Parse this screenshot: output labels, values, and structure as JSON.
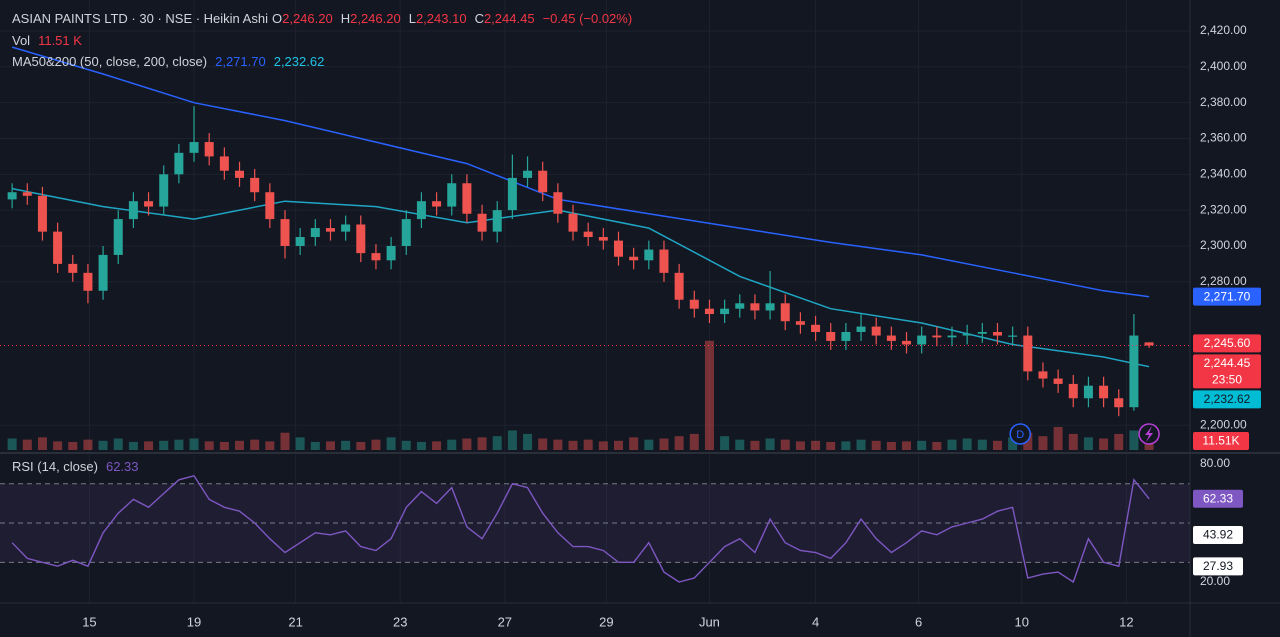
{
  "chart_data": [
    {
      "type": "candlestick",
      "title": "ASIAN PAINTS LTD · 30 · NSE · Heikin Ashi",
      "quote": [
        {
          "name": "O",
          "value": 2246.2,
          "label": "2,246.20"
        },
        {
          "name": "H",
          "value": 2246.2,
          "label": "2,246.20"
        },
        {
          "name": "L",
          "value": 2243.1,
          "label": "2,243.10"
        },
        {
          "name": "C",
          "value": 2244.45,
          "label": "2,244.45"
        }
      ],
      "change": "−0.45 (−0.02%)",
      "volume_title": "Vol",
      "volume_text": "11.51 K",
      "volume_box": "11.51K",
      "ma_title": "MA50&200 (50, close, 200, close)",
      "up_color": "#26a69a",
      "down_color": "#ef5350",
      "open": [
        2326,
        2330,
        2328,
        2308,
        2290,
        2285,
        2275,
        2295,
        2315,
        2325,
        2322,
        2340,
        2352,
        2358,
        2350,
        2342,
        2338,
        2330,
        2315,
        2300,
        2305,
        2310,
        2308,
        2312,
        2296,
        2292,
        2300,
        2315,
        2325,
        2322,
        2335,
        2318,
        2308,
        2320,
        2338,
        2342,
        2330,
        2318,
        2308,
        2305,
        2303,
        2294,
        2292,
        2298,
        2285,
        2270,
        2265,
        2262,
        2265,
        2268,
        2264,
        2268,
        2258,
        2256,
        2252,
        2247,
        2252,
        2255,
        2250,
        2247,
        2245,
        2250,
        2249,
        2250,
        2251,
        2252,
        2250,
        2250,
        2230,
        2226,
        2223,
        2215,
        2222,
        2215,
        2210,
        2246.2
      ],
      "high": [
        2335,
        2335,
        2333,
        2313,
        2295,
        2290,
        2300,
        2320,
        2330,
        2330,
        2345,
        2357,
        2378,
        2363,
        2355,
        2347,
        2343,
        2335,
        2320,
        2310,
        2315,
        2315,
        2317,
        2317,
        2301,
        2305,
        2320,
        2330,
        2330,
        2340,
        2340,
        2323,
        2325,
        2351,
        2350,
        2347,
        2335,
        2323,
        2313,
        2310,
        2308,
        2299,
        2303,
        2303,
        2290,
        2275,
        2270,
        2270,
        2273,
        2273,
        2286,
        2273,
        2263,
        2261,
        2257,
        2257,
        2262,
        2260,
        2255,
        2252,
        2255,
        2255,
        2255,
        2256,
        2257,
        2257,
        2255,
        2255,
        2235,
        2231,
        2228,
        2227,
        2227,
        2220,
        2262,
        2246.2
      ],
      "low": [
        2321,
        2323,
        2303,
        2285,
        2280,
        2268,
        2270,
        2290,
        2310,
        2317,
        2317,
        2335,
        2347,
        2345,
        2337,
        2333,
        2325,
        2310,
        2293,
        2295,
        2300,
        2303,
        2303,
        2291,
        2287,
        2287,
        2295,
        2310,
        2317,
        2317,
        2313,
        2303,
        2302,
        2315,
        2333,
        2325,
        2313,
        2303,
        2300,
        2298,
        2289,
        2287,
        2287,
        2280,
        2265,
        2260,
        2257,
        2257,
        2260,
        2259,
        2259,
        2253,
        2251,
        2247,
        2242,
        2242,
        2247,
        2245,
        2242,
        2240,
        2240,
        2244,
        2244,
        2245,
        2246,
        2245,
        2245,
        2225,
        2221,
        2218,
        2210,
        2210,
        2210,
        2205,
        2208,
        2243.1
      ],
      "close": [
        2330,
        2328,
        2308,
        2290,
        2285,
        2275,
        2295,
        2315,
        2325,
        2322,
        2340,
        2352,
        2358,
        2350,
        2342,
        2338,
        2330,
        2315,
        2300,
        2305,
        2310,
        2308,
        2312,
        2296,
        2292,
        2300,
        2315,
        2325,
        2322,
        2335,
        2318,
        2308,
        2320,
        2338,
        2342,
        2330,
        2318,
        2308,
        2305,
        2303,
        2294,
        2292,
        2298,
        2285,
        2270,
        2265,
        2262,
        2265,
        2268,
        2264,
        2268,
        2258,
        2256,
        2252,
        2247,
        2252,
        2255,
        2250,
        2247,
        2245,
        2250,
        2249,
        2250,
        2251,
        2252,
        2250,
        2250,
        2230,
        2226,
        2223,
        2215,
        2222,
        2215,
        2210,
        2250,
        2244.45
      ],
      "volume": [
        20,
        18,
        22,
        15,
        14,
        18,
        16,
        20,
        14,
        15,
        16,
        18,
        20,
        15,
        14,
        16,
        18,
        15,
        30,
        22,
        14,
        15,
        16,
        14,
        18,
        22,
        16,
        14,
        15,
        18,
        20,
        22,
        24,
        34,
        28,
        20,
        18,
        16,
        18,
        15,
        16,
        22,
        18,
        20,
        24,
        28,
        190,
        24,
        18,
        16,
        20,
        18,
        15,
        16,
        14,
        15,
        18,
        16,
        14,
        15,
        16,
        14,
        18,
        20,
        18,
        16,
        22,
        30,
        24,
        40,
        28,
        22,
        20,
        28,
        34,
        18
      ],
      "volume_lim": [
        0,
        200
      ],
      "series": [
        {
          "color": "#2962ff",
          "x": [
            0,
            6,
            12,
            18,
            24,
            30,
            36,
            42,
            48,
            54,
            60,
            66,
            72,
            75
          ],
          "values": [
            2411,
            2396,
            2380,
            2370,
            2358,
            2346,
            2326,
            2318,
            2310,
            2302,
            2295,
            2285,
            2275,
            2271.7
          ],
          "value_label": "2,271.70"
        },
        {
          "color": "#1fa6c4",
          "x": [
            0,
            6,
            12,
            18,
            24,
            30,
            36,
            42,
            48,
            54,
            60,
            66,
            72,
            75
          ],
          "values": [
            2332,
            2322,
            2315,
            2325,
            2322,
            2313,
            2320,
            2310,
            2283,
            2265,
            2257,
            2245,
            2238,
            2232.62
          ],
          "value_label": "2,232.62"
        }
      ],
      "last_price": 2244.45,
      "last_price_label": "2,244.45",
      "countdown": "23:50",
      "markers": [
        {
          "value": 2245.6,
          "label": "2,245.60"
        }
      ],
      "events": [
        {
          "x": 66.5,
          "label": "D"
        }
      ],
      "xlim": [
        -0.8,
        77.7
      ],
      "ylim": [
        2185,
        2437.3
      ],
      "xticks": [
        {
          "value": 5.1,
          "label": "15"
        },
        {
          "value": 12,
          "label": "19"
        },
        {
          "value": 18.7,
          "label": "21"
        },
        {
          "value": 25.6,
          "label": "23"
        },
        {
          "value": 32.5,
          "label": "27"
        },
        {
          "value": 39.2,
          "label": "29"
        },
        {
          "value": 46,
          "label": "Jun"
        },
        {
          "value": 53,
          "label": "4"
        },
        {
          "value": 59.8,
          "label": "6"
        },
        {
          "value": 66.6,
          "label": "10"
        },
        {
          "value": 73.5,
          "label": "12"
        }
      ],
      "yticks": [
        {
          "value": 2420,
          "label": "2,420.00"
        },
        {
          "value": 2400,
          "label": "2,400.00"
        },
        {
          "value": 2380,
          "label": "2,380.00"
        },
        {
          "value": 2360,
          "label": "2,360.00"
        },
        {
          "value": 2340,
          "label": "2,340.00"
        },
        {
          "value": 2320,
          "label": "2,320.00"
        },
        {
          "value": 2300,
          "label": "2,300.00"
        },
        {
          "value": 2280,
          "label": "2,280.00"
        },
        {
          "value": 2200,
          "label": "2,200.00"
        }
      ],
      "grid": true
    },
    {
      "type": "line",
      "title": "RSI (14, close)",
      "value_label": "62.33",
      "color": "#7e57c2",
      "values": [
        40,
        32,
        30,
        28,
        31,
        28,
        45,
        55,
        62,
        58,
        65,
        72,
        74,
        62,
        58,
        56,
        50,
        42,
        35,
        40,
        45,
        44,
        46,
        38,
        36,
        42,
        58,
        66,
        60,
        68,
        48,
        42,
        55,
        70,
        68,
        55,
        45,
        38,
        38,
        36,
        30,
        30,
        40,
        25,
        20,
        22,
        30,
        38,
        42,
        35,
        52,
        40,
        36,
        35,
        32,
        40,
        52,
        42,
        35,
        40,
        46,
        44,
        48,
        50,
        52,
        56,
        58,
        22,
        24,
        25,
        20,
        42,
        30,
        28,
        72,
        62.33
      ],
      "bands": [
        70,
        50,
        30
      ],
      "markers": [
        {
          "value": 43.92,
          "label": "43.92"
        },
        {
          "value": 27.93,
          "label": "27.93"
        }
      ],
      "ylim": [
        9.3,
        84.6
      ],
      "yticks": [
        {
          "value": 80,
          "label": "80.00"
        },
        {
          "value": 20,
          "label": "20.00"
        }
      ]
    }
  ]
}
